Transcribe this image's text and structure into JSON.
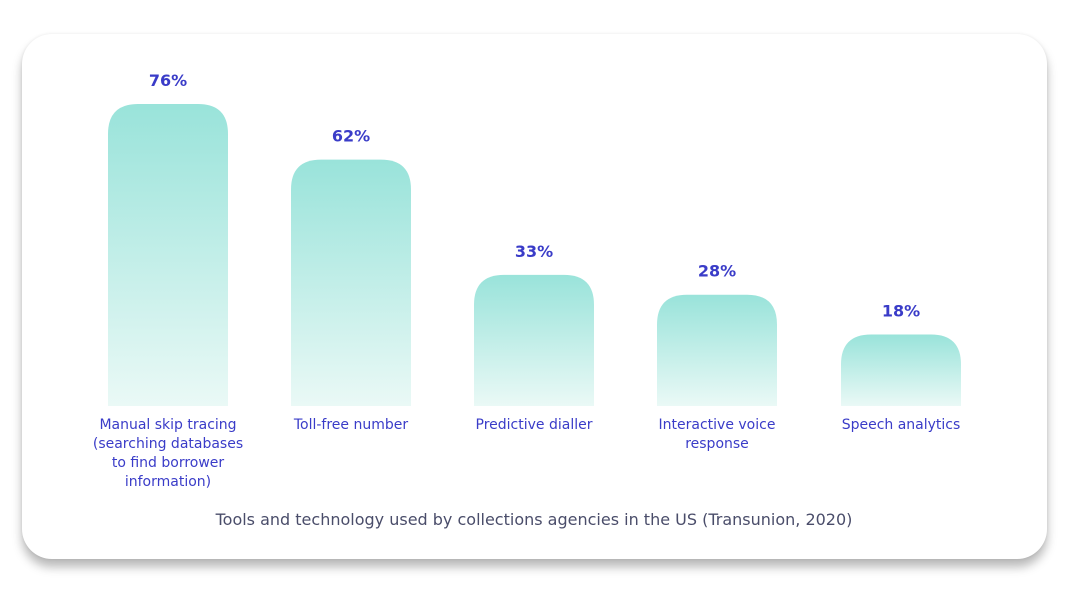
{
  "colors": {
    "bar_top": "#99e3da",
    "bar_bottom": "#eaf9f6",
    "label": "#3a3cc8",
    "caption": "#4a4d6a"
  },
  "chart_data": {
    "type": "bar",
    "title": "Tools and technology used by collections agencies in the US (Transunion, 2020)",
    "xlabel": "",
    "ylabel": "",
    "ylim": [
      0,
      76
    ],
    "unit": "%",
    "categories": [
      [
        "Manual skip tracing",
        "(searching databases",
        "to find borrower",
        "information)"
      ],
      [
        "Toll-free number"
      ],
      [
        "Predictive dialler"
      ],
      [
        "Interactive voice",
        "response"
      ],
      [
        "Speech analytics"
      ]
    ],
    "values": [
      76,
      62,
      33,
      28,
      18
    ],
    "value_labels": [
      "76%",
      "62%",
      "33%",
      "28%",
      "18%"
    ]
  }
}
